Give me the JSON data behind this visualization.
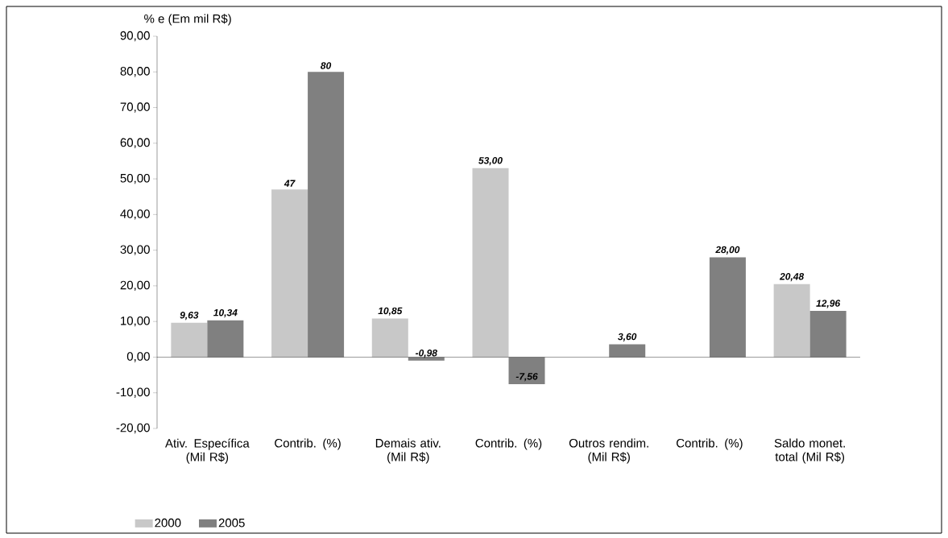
{
  "chart_data": {
    "type": "bar",
    "ylabel": "% e (Em mil R$)",
    "categories": [
      "Ativ. Específica (Mil R$)",
      "Contrib. (%)",
      "Demais ativ. (Mil R$)",
      "Contrib. (%)",
      "Outros rendim. (Mil R$)",
      "Contrib. (%)",
      "Saldo monet. total (Mil R$)"
    ],
    "series": [
      {
        "name": "2000",
        "color": "#c8c8c8",
        "values": [
          9.63,
          47,
          10.85,
          53.0,
          null,
          null,
          20.48
        ],
        "value_labels": [
          "9,63",
          "47",
          "10,85",
          "53,00",
          null,
          null,
          "20,48"
        ]
      },
      {
        "name": "2005",
        "color": "#808080",
        "values": [
          10.34,
          80,
          -0.98,
          -7.56,
          3.6,
          28.0,
          12.96
        ],
        "value_labels": [
          "10,34",
          "80",
          "-0,98",
          "-7,56",
          "3,60",
          "28,00",
          "12,96"
        ]
      }
    ],
    "ylim": [
      -20,
      90
    ],
    "yticks": [
      {
        "value": -20,
        "label": "-20,00"
      },
      {
        "value": -10,
        "label": "-10,00"
      },
      {
        "value": 0,
        "label": "0,00"
      },
      {
        "value": 10,
        "label": "10,00"
      },
      {
        "value": 20,
        "label": "20,00"
      },
      {
        "value": 30,
        "label": "30,00"
      },
      {
        "value": 40,
        "label": "40,00"
      },
      {
        "value": 50,
        "label": "50,00"
      },
      {
        "value": 60,
        "label": "60,00"
      },
      {
        "value": 70,
        "label": "70,00"
      },
      {
        "value": 80,
        "label": "80,00"
      },
      {
        "value": 90,
        "label": "90,00"
      }
    ],
    "legend": "bottom left"
  }
}
